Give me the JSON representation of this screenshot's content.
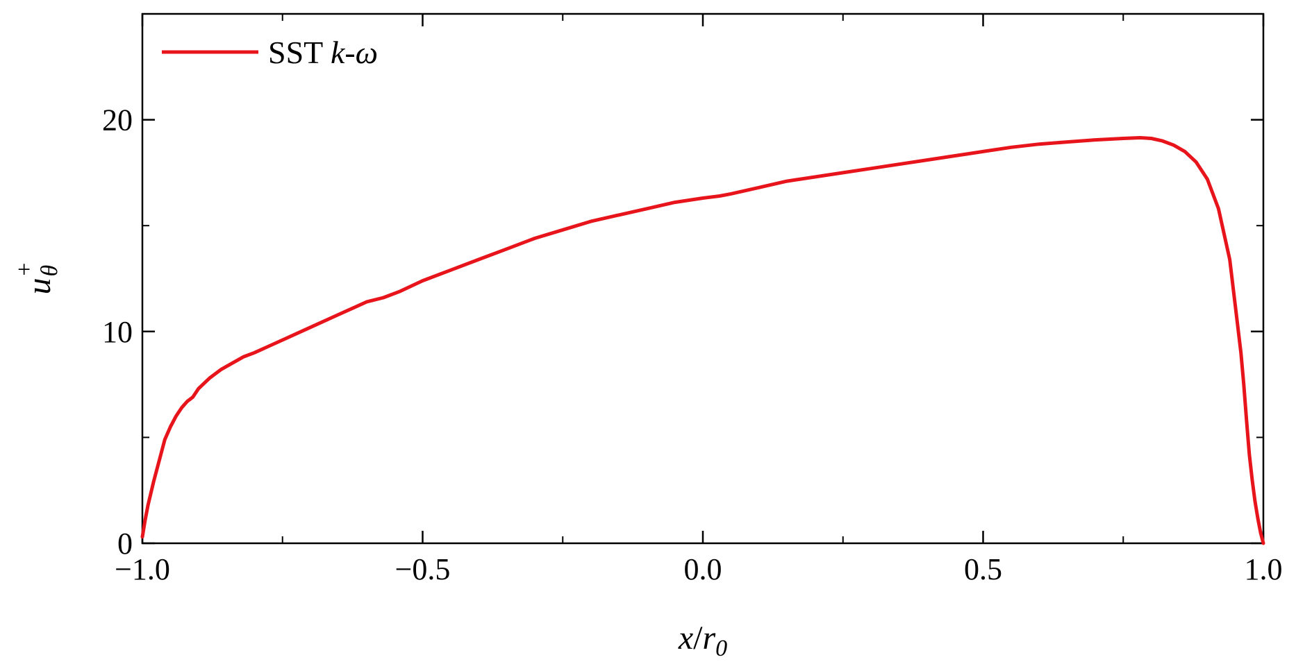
{
  "chart_data": {
    "type": "line",
    "title": "",
    "xlabel": {
      "main": "x",
      "slash": "/",
      "sub_base": "r",
      "sub_index": "0"
    },
    "ylabel": {
      "base": "u",
      "subscript": "θ",
      "superscript": "+"
    },
    "xlim": [
      -1.0,
      1.0
    ],
    "ylim": [
      0,
      25
    ],
    "x_major_ticks": [
      -1.0,
      -0.5,
      0.0,
      0.5,
      1.0
    ],
    "x_tick_labels": [
      "−1.0",
      "−0.5",
      "0.0",
      "0.5",
      "1.0"
    ],
    "x_minor_ticks": [
      -0.75,
      -0.25,
      0.25,
      0.75
    ],
    "y_major_ticks": [
      0,
      10,
      20
    ],
    "y_tick_labels": [
      "0",
      "10",
      "20"
    ],
    "y_minor_ticks": [
      5,
      15
    ],
    "grid": false,
    "legend": {
      "placement": "top-left",
      "entries": [
        {
          "text_plain": "SST ",
          "text_italic": "k-ω",
          "color": "#e8141b"
        }
      ]
    },
    "series": [
      {
        "color": "#e8141b",
        "x": [
          -1.0,
          -0.995,
          -0.99,
          -0.98,
          -0.97,
          -0.96,
          -0.95,
          -0.94,
          -0.93,
          -0.92,
          -0.91,
          -0.9,
          -0.88,
          -0.86,
          -0.84,
          -0.82,
          -0.8,
          -0.75,
          -0.7,
          -0.65,
          -0.6,
          -0.57,
          -0.54,
          -0.5,
          -0.45,
          -0.4,
          -0.35,
          -0.3,
          -0.25,
          -0.2,
          -0.15,
          -0.1,
          -0.05,
          0.0,
          0.03,
          0.05,
          0.1,
          0.15,
          0.2,
          0.25,
          0.3,
          0.35,
          0.4,
          0.45,
          0.5,
          0.55,
          0.6,
          0.65,
          0.7,
          0.75,
          0.78,
          0.8,
          0.82,
          0.84,
          0.86,
          0.88,
          0.9,
          0.92,
          0.94,
          0.96,
          0.965,
          0.97,
          0.975,
          0.98,
          0.985,
          0.99,
          0.995,
          1.0
        ],
        "y": [
          0.3,
          1.1,
          1.8,
          2.9,
          3.9,
          4.9,
          5.5,
          6.0,
          6.4,
          6.7,
          6.9,
          7.3,
          7.8,
          8.2,
          8.5,
          8.8,
          9.0,
          9.6,
          10.2,
          10.8,
          11.4,
          11.6,
          11.9,
          12.4,
          12.9,
          13.4,
          13.9,
          14.4,
          14.8,
          15.2,
          15.5,
          15.8,
          16.1,
          16.3,
          16.4,
          16.5,
          16.8,
          17.1,
          17.3,
          17.5,
          17.7,
          17.9,
          18.1,
          18.3,
          18.5,
          18.7,
          18.85,
          18.95,
          19.05,
          19.12,
          19.15,
          19.12,
          19.0,
          18.8,
          18.5,
          18.0,
          17.2,
          15.8,
          13.4,
          9.0,
          7.5,
          5.8,
          4.2,
          3.0,
          2.0,
          1.2,
          0.5,
          0.0
        ]
      }
    ]
  }
}
